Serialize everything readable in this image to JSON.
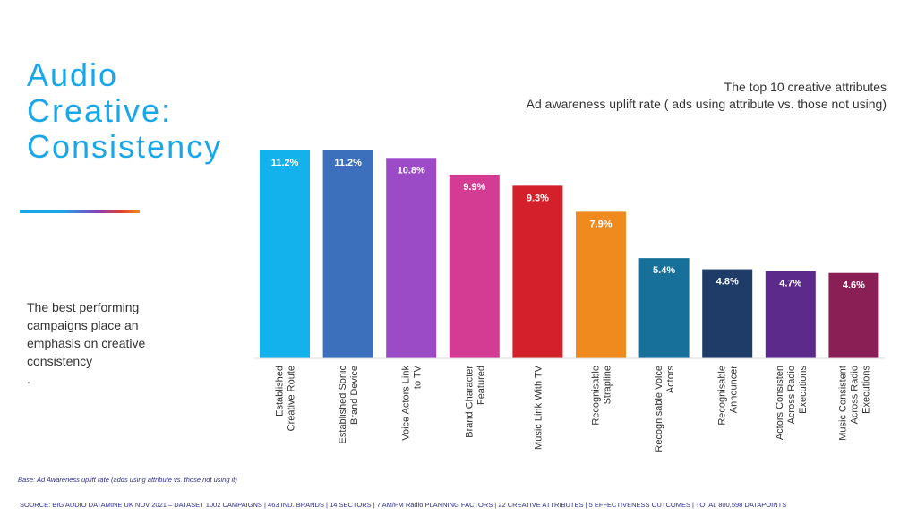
{
  "slide": {
    "title_lines": [
      "Audio",
      "Creative:",
      "Consistency"
    ],
    "body_lines": [
      "The best performing",
      "campaigns place an",
      "emphasis on creative",
      "consistency",
      "."
    ],
    "base_note": "Base: Ad Awareness uplift rate (adds using attribute vs. those not using it)",
    "source_note": "SOURCE: BIG AUDIO DATAMINE UK NOV 2021 – DATASET 1002 CAMPAIGNS | 463 IND. BRANDS | 14 SECTORS | 7 AM/FM Radio PLANNING FACTORS | 22 CREATIVE ATTRIBUTES | 5 EFFECTIVENESS OUTCOMES | TOTAL 800,598 DATAPOINTS"
  },
  "chart_data": {
    "type": "bar",
    "title": "The top 10 creative attributes",
    "subtitle": "Ad awareness uplift rate ( ads using attribute vs. those not using)",
    "categories": [
      "Established Creative Route",
      "Established Sonic Brand Device",
      "Voice Actors Link to TV",
      "Brand Character Featured",
      "Music Link With TV",
      "Recognisable Strapline",
      "Recognisable Voice Actors",
      "Recognisable Announcer",
      "Actors Consisten Across Radio Executions",
      "Music Consistent Across Radio Executions"
    ],
    "category_label_lines": [
      [
        "Established",
        "Creative Route"
      ],
      [
        "Established Sonic",
        "Brand Device"
      ],
      [
        "Voice Actors Link",
        "to TV"
      ],
      [
        "Brand Character",
        "Featured"
      ],
      [
        "Music Link With TV"
      ],
      [
        "Recognisable",
        "Strapline"
      ],
      [
        "Recognisable Voice",
        "Actors"
      ],
      [
        "Recognisable",
        "Announcer"
      ],
      [
        "Actors Consisten",
        "Across Radio",
        "Executions"
      ],
      [
        "Music Consistent",
        "Across Radio",
        "Executions"
      ]
    ],
    "values": [
      11.2,
      11.2,
      10.8,
      9.9,
      9.3,
      7.9,
      5.4,
      4.8,
      4.7,
      4.6
    ],
    "data_labels": [
      "11.2%",
      "11.2%",
      "10.8%",
      "9.9%",
      "9.3%",
      "7.9%",
      "5.4%",
      "4.8%",
      "4.7%",
      "4.6%"
    ],
    "colors": [
      "#14b2ec",
      "#3c6fbc",
      "#9a4bc5",
      "#d33c92",
      "#d4202a",
      "#f08a1e",
      "#16709a",
      "#1f3b68",
      "#5b2a8a",
      "#8a1f55"
    ],
    "ylim": [
      0,
      11.2
    ],
    "grid": false,
    "legend": false
  }
}
